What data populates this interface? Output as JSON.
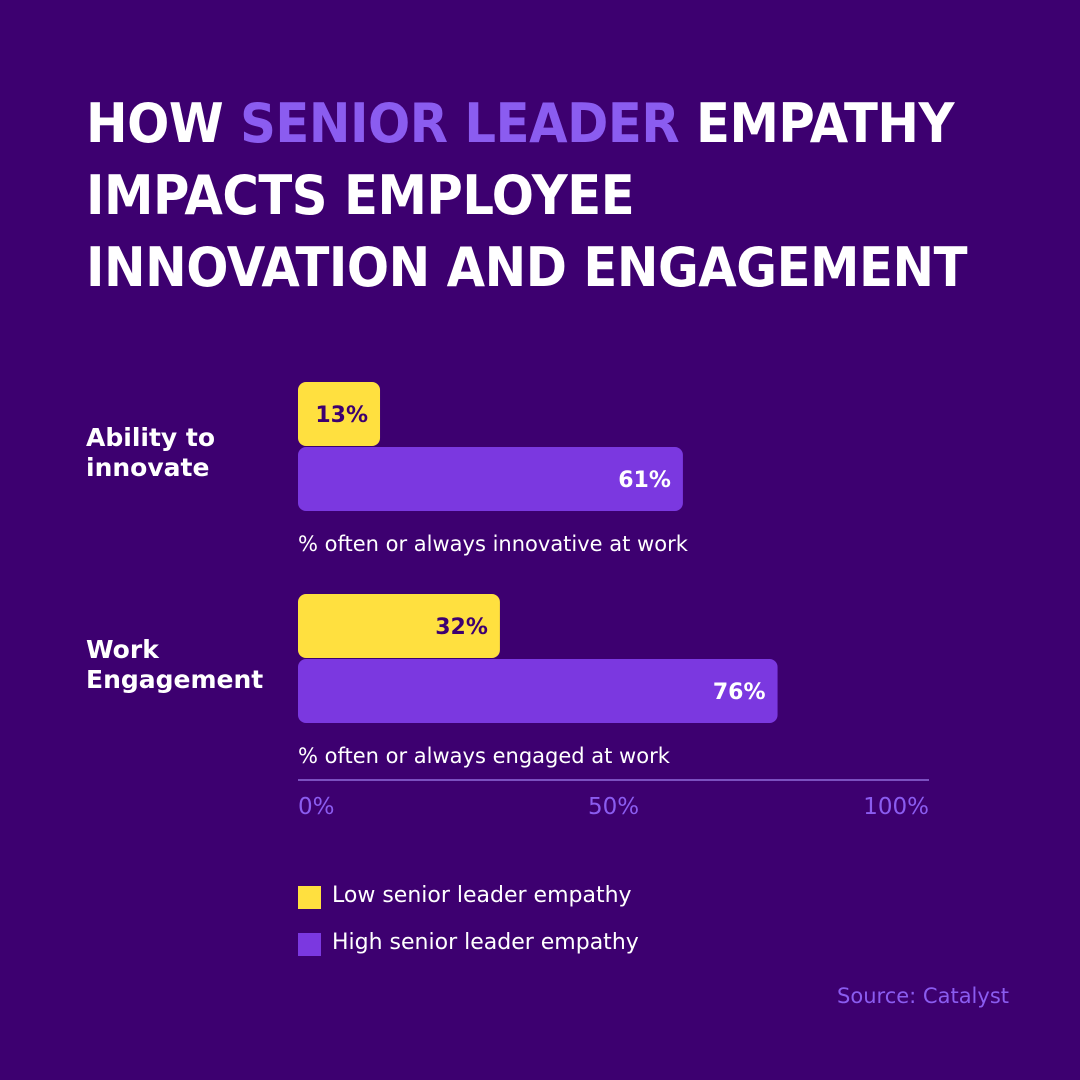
{
  "header": {
    "title_part1": "HOW ",
    "title_accent": "SENIOR LEADER",
    "title_part2": " EMPATHY IMPACTS EMPLOYEE INNOVATION AND ENGAGEMENT"
  },
  "colors": {
    "background": "#3d0070",
    "low": "#ffe03f",
    "high": "#7b38e0",
    "accent": "#8b5cf0",
    "axis": "#7b50c0"
  },
  "chart_data": {
    "type": "bar",
    "orientation": "horizontal",
    "categories": [
      "Ability to innovate",
      "Work Engagement"
    ],
    "category_lines": [
      [
        "Ability to",
        "innovate"
      ],
      [
        "Work",
        "Engagement"
      ]
    ],
    "subtitles": [
      "% often or always innovative at work",
      "% often or always engaged at work"
    ],
    "series": [
      {
        "name": "Low senior leader empathy",
        "values": [
          13,
          32
        ],
        "labels": [
          "13%",
          "32%"
        ]
      },
      {
        "name": "High senior leader empathy",
        "values": [
          61,
          76
        ],
        "labels": [
          "61%",
          "76%"
        ]
      }
    ],
    "xlim": [
      0,
      100
    ],
    "xticks": [
      0,
      50,
      100
    ],
    "xtick_labels": [
      "0%",
      "50%",
      "100%"
    ],
    "legend_position": "bottom-left"
  },
  "legend": {
    "low_label": "Low senior leader empathy",
    "high_label": "High senior leader empathy"
  },
  "footer": {
    "source": "Source: Catalyst"
  }
}
